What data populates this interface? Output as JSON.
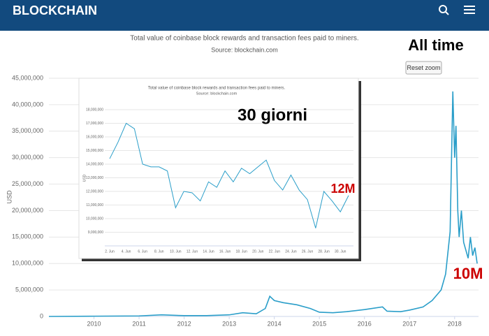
{
  "header": {
    "brand": "BLOCKCHAIN"
  },
  "reset_zoom": "Reset zoom",
  "chart_data": [
    {
      "type": "line",
      "title": "Total value of coinbase block rewards and transaction fees paid to miners.",
      "subtitle": "Source: blockchain.com",
      "y_label": "USD",
      "annotations": [
        "All time",
        "10M"
      ],
      "color": "#2a9ec9",
      "x": [
        2009.0,
        2010.0,
        2011.0,
        2011.5,
        2012.0,
        2012.5,
        2013.0,
        2013.3,
        2013.6,
        2013.8,
        2013.9,
        2014.0,
        2014.2,
        2014.5,
        2014.8,
        2015.0,
        2015.3,
        2015.6,
        2016.0,
        2016.4,
        2016.5,
        2016.8,
        2017.0,
        2017.3,
        2017.5,
        2017.7,
        2017.8,
        2017.9,
        2017.96,
        2018.0,
        2018.03,
        2018.07,
        2018.1,
        2018.15,
        2018.2,
        2018.3,
        2018.35,
        2018.4,
        2018.45,
        2018.5
      ],
      "values": [
        0,
        50000,
        100000,
        300000,
        150000,
        150000,
        300000,
        700000,
        500000,
        1500000,
        3800000,
        3000000,
        2600000,
        2200000,
        1500000,
        800000,
        700000,
        900000,
        1300000,
        1800000,
        1000000,
        900000,
        1200000,
        1800000,
        3000000,
        5000000,
        8000000,
        16000000,
        42500000,
        30000000,
        36000000,
        20000000,
        15000000,
        20000000,
        14000000,
        11000000,
        15000000,
        11500000,
        13000000,
        10000000
      ],
      "xlim": [
        2009.0,
        2018.53
      ],
      "xticks": [
        2010,
        2011,
        2012,
        2013,
        2014,
        2015,
        2016,
        2017,
        2018
      ],
      "ylim": [
        0,
        45000000
      ],
      "yticks": [
        0,
        {
          "value": 5000000,
          "label": "5,000,000"
        },
        {
          "value": 10000000,
          "label": "10,000,000"
        },
        {
          "value": 15000000,
          "label": "15,000,000"
        },
        {
          "value": 20000000,
          "label": "20,000,000"
        },
        {
          "value": 25000000,
          "label": "25,000,000"
        },
        {
          "value": 30000000,
          "label": "30,000,000"
        },
        {
          "value": 35000000,
          "label": "35,000,000"
        },
        {
          "value": 40000000,
          "label": "40,000,000"
        },
        {
          "value": 45000000,
          "label": "45,000,000"
        }
      ],
      "grid": true
    },
    {
      "type": "line",
      "title": "Total value of coinbase block rewards and transaction fees paid to miners.",
      "subtitle": "Source: blockchain.com",
      "y_label": "USD",
      "annotations": [
        "30 giorni",
        "12M"
      ],
      "color": "#2a9ec9",
      "categories": [
        "2. Jun",
        null,
        "4. Jun",
        null,
        "6. Jun",
        null,
        "8. Jun",
        null,
        "10. Jun",
        null,
        "12. Jun",
        null,
        "14. Jun",
        null,
        "16. Jun",
        null,
        "18. Jun",
        null,
        "20. Jun",
        null,
        "22. Jun",
        null,
        "24. Jun",
        null,
        "26. Jun",
        null,
        "28. Jun",
        null,
        "30. Jun",
        null
      ],
      "values": [
        14400000,
        15600000,
        17000000,
        16600000,
        14000000,
        13800000,
        13800000,
        13500000,
        10800000,
        12000000,
        11900000,
        11300000,
        12700000,
        12300000,
        13500000,
        12700000,
        13700000,
        13300000,
        13800000,
        14300000,
        12800000,
        12100000,
        13200000,
        12100000,
        11400000,
        9300000,
        12000000,
        11300000,
        10500000,
        11700000
      ],
      "ylim": [
        8000000,
        18000000
      ],
      "yticks": [
        {
          "value": 9000000,
          "label": "9,000,000"
        },
        {
          "value": 10000000,
          "label": "10,000,000"
        },
        {
          "value": 11000000,
          "label": "11,000,000"
        },
        {
          "value": 12000000,
          "label": "12,000,000"
        },
        {
          "value": 13000000,
          "label": "13,000,000"
        },
        {
          "value": 14000000,
          "label": "14,000,000"
        },
        {
          "value": 15000000,
          "label": "15,000,000"
        },
        {
          "value": 16000000,
          "label": "16,000,000"
        },
        {
          "value": 17000000,
          "label": "17,000,000"
        },
        {
          "value": 18000000,
          "label": "18,000,000"
        }
      ],
      "grid": true
    }
  ]
}
